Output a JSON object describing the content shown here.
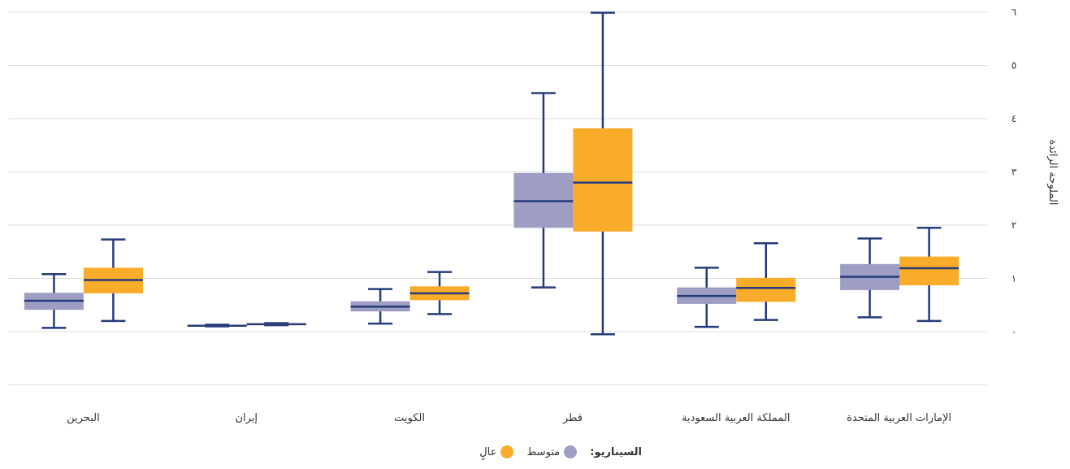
{
  "chart_data": {
    "type": "boxplot",
    "ylabel": "الملوحة الزائدة",
    "ylim": [
      -1,
      6
    ],
    "yticks": [
      0,
      1,
      2,
      3,
      4,
      5,
      6
    ],
    "ytick_labels": [
      "٠",
      "١",
      "٢",
      "٣",
      "٤",
      "٥",
      "٦"
    ],
    "categories": [
      "البحرين",
      "إيران",
      "الكويت",
      "قطر",
      "المملكة العربية السعودية",
      "الإمارات العربية المتحدة"
    ],
    "series": [
      {
        "name": "متوسط",
        "color": "#9e9ec4",
        "boxes": [
          {
            "min": 0.07,
            "q1": 0.41,
            "median": 0.58,
            "q3": 0.73,
            "max": 1.08
          },
          {
            "min": 0.1,
            "q1": 0.1,
            "median": 0.11,
            "q3": 0.13,
            "max": 0.13
          },
          {
            "min": 0.15,
            "q1": 0.38,
            "median": 0.47,
            "q3": 0.57,
            "max": 0.8
          },
          {
            "min": 0.83,
            "q1": 1.95,
            "median": 2.45,
            "q3": 2.98,
            "max": 4.48
          },
          {
            "min": 0.09,
            "q1": 0.52,
            "median": 0.67,
            "q3": 0.83,
            "max": 1.2
          },
          {
            "min": 0.27,
            "q1": 0.78,
            "median": 1.03,
            "q3": 1.27,
            "max": 1.75
          }
        ]
      },
      {
        "name": "عالٍ",
        "color": "#f9ab2a",
        "boxes": [
          {
            "min": 0.2,
            "q1": 0.72,
            "median": 0.97,
            "q3": 1.2,
            "max": 1.73
          },
          {
            "min": 0.12,
            "q1": 0.12,
            "median": 0.14,
            "q3": 0.16,
            "max": 0.16
          },
          {
            "min": 0.33,
            "q1": 0.59,
            "median": 0.72,
            "q3": 0.85,
            "max": 1.12
          },
          {
            "min": -0.05,
            "q1": 1.88,
            "median": 2.8,
            "q3": 3.82,
            "max": 5.99
          },
          {
            "min": 0.22,
            "q1": 0.56,
            "median": 0.82,
            "q3": 1.01,
            "max": 1.66
          },
          {
            "min": 0.2,
            "q1": 0.87,
            "median": 1.19,
            "q3": 1.41,
            "max": 1.95
          }
        ]
      }
    ],
    "grid": true,
    "legend_position": "bottom-center",
    "whisker_color": "#253b7b"
  },
  "legend": {
    "title": "السيناريو:",
    "items": [
      {
        "label": "متوسط",
        "color": "#9e9ec4"
      },
      {
        "label": "عالٍ",
        "color": "#f9ab2a"
      }
    ]
  }
}
